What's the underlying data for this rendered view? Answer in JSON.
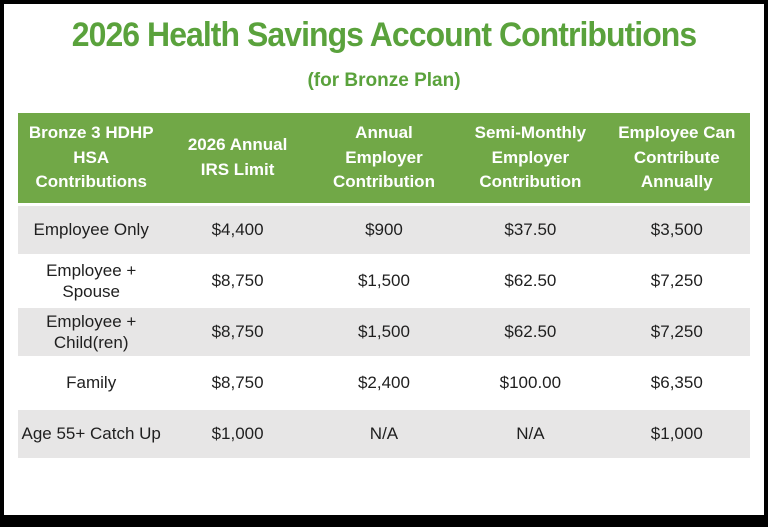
{
  "title": "2026 Health Savings Account Contributions",
  "subtitle": "(for Bronze Plan)",
  "colors": {
    "title-green": "#5AA23C",
    "header-green": "#71A847",
    "header-text": "#FFFFFF",
    "row-gray": "#E7E6E6",
    "row-white": "#FFFFFF",
    "body-text": "#1F1F1F",
    "frame-black": "#000000",
    "background": "#FFFFFF"
  },
  "table": {
    "headers": [
      "Bronze 3 HDHP\nHSA\nContributions",
      "2026 Annual\nIRS Limit",
      "Annual\nEmployer\nContribution",
      "Semi-Monthly\nEmployer\nContribution",
      "Employee Can\nContribute\nAnnually"
    ],
    "rows": [
      {
        "cells": [
          "Employee Only",
          "$4,400",
          "$900",
          "$37.50",
          "$3,500"
        ]
      },
      {
        "cells": [
          "Employee +\nSpouse",
          "$8,750",
          "$1,500",
          "$62.50",
          "$7,250"
        ]
      },
      {
        "cells": [
          "Employee +\nChild(ren)",
          "$8,750",
          "$1,500",
          "$62.50",
          "$7,250"
        ]
      },
      {
        "cells": [
          "Family",
          "$8,750",
          "$2,400",
          "$100.00",
          "$6,350"
        ]
      },
      {
        "cells": [
          "Age 55+ Catch Up",
          "$1,000",
          "N/A",
          "N/A",
          "$1,000"
        ]
      }
    ]
  }
}
